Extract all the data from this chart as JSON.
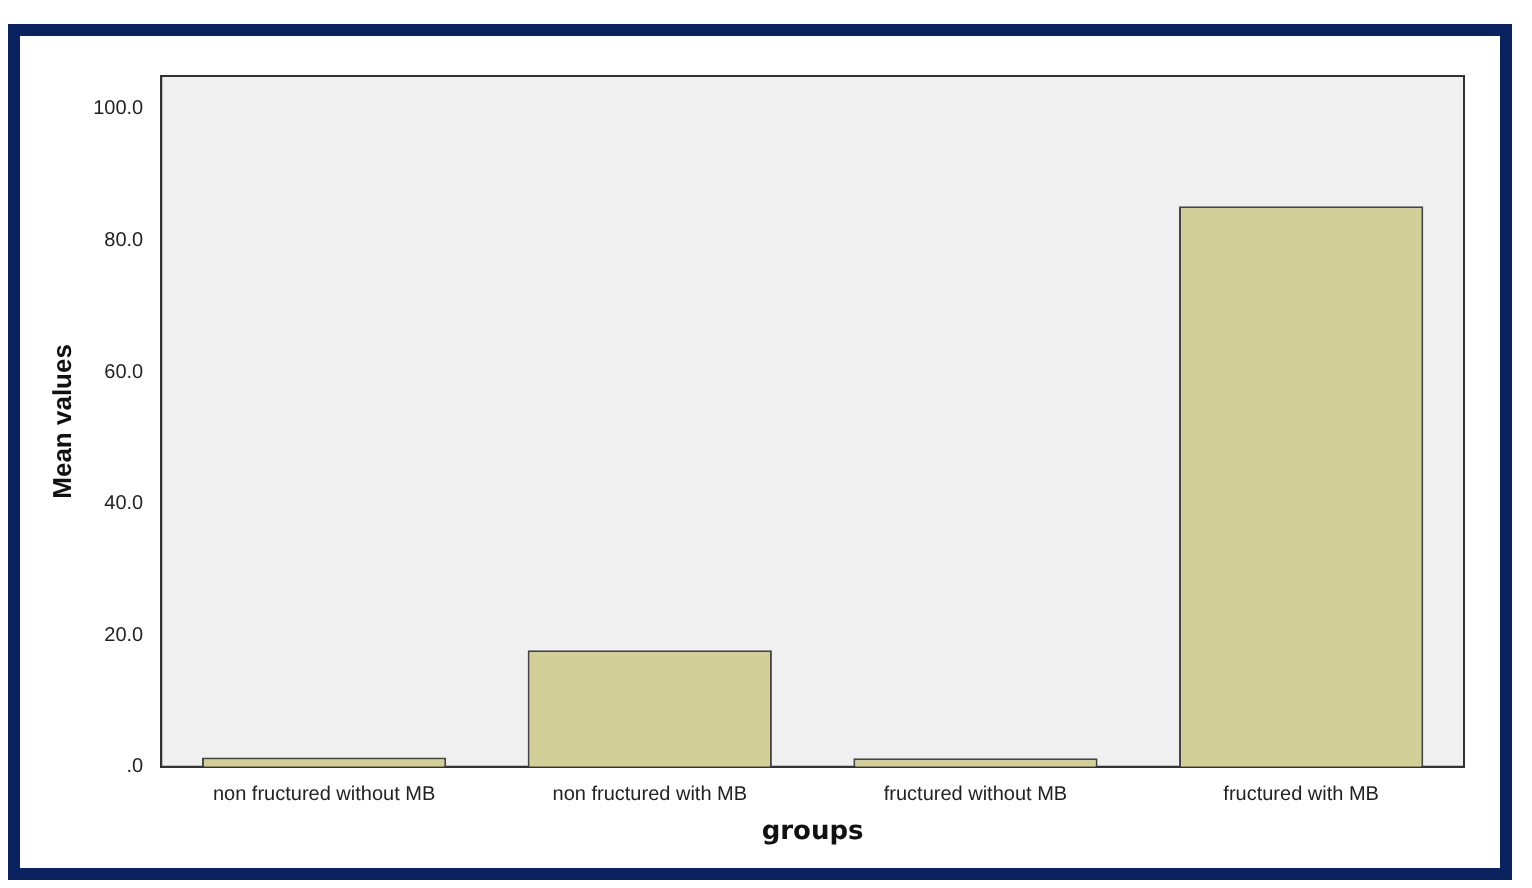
{
  "chart_data": {
    "type": "bar",
    "xlabel": "groups",
    "ylabel": "Mean values",
    "categories": [
      "non fructured without MB",
      "non fructured with MB",
      "fructured without MB",
      "fructured with MB"
    ],
    "values": [
      1.4,
      17.7,
      1.3,
      85.2
    ],
    "color": "#d3cf98",
    "ylim": [
      0,
      105
    ],
    "yticks": [
      {
        "value": 0,
        "label": ".0"
      },
      {
        "value": 20,
        "label": "20.0"
      },
      {
        "value": 40,
        "label": "40.0"
      },
      {
        "value": 60,
        "label": "60.0"
      },
      {
        "value": 80,
        "label": "80.0"
      },
      {
        "value": 100,
        "label": "100.0"
      }
    ],
    "grid": false,
    "legend": false
  }
}
